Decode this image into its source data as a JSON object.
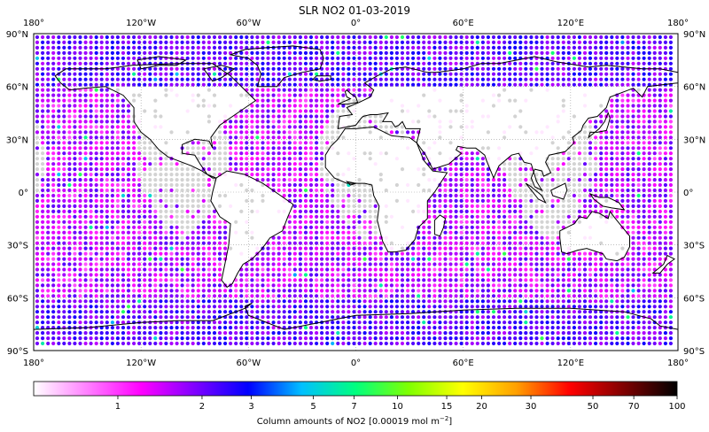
{
  "title": "SLR NO2 01-03-2019",
  "map": {
    "projection": "equirectangular",
    "lon_range": [
      -180,
      180
    ],
    "lat_range": [
      -90,
      90
    ],
    "gridlines": true,
    "coastlines": true,
    "lon_ticks": [
      {
        "value": -180,
        "label": "180°"
      },
      {
        "value": -120,
        "label": "120°W"
      },
      {
        "value": -60,
        "label": "60°W"
      },
      {
        "value": 0,
        "label": "0°"
      },
      {
        "value": 60,
        "label": "60°E"
      },
      {
        "value": 120,
        "label": "120°E"
      },
      {
        "value": 180,
        "label": "180°"
      }
    ],
    "lat_ticks": [
      {
        "value": 90,
        "label": "90°N"
      },
      {
        "value": 60,
        "label": "60°N"
      },
      {
        "value": 30,
        "label": "30°N"
      },
      {
        "value": 0,
        "label": "0°"
      },
      {
        "value": -30,
        "label": "30°S"
      },
      {
        "value": -60,
        "label": "60°S"
      },
      {
        "value": -90,
        "label": "90°S"
      }
    ],
    "no_data_color": "#d3d3d3"
  },
  "colorbar": {
    "label": "Column amounts of NO2 [0.00019 mol m",
    "label_superscript": "−2",
    "label_suffix": "]",
    "scale": "log",
    "range": [
      0.5,
      100
    ],
    "ticks": [
      {
        "value": 1,
        "label": "1"
      },
      {
        "value": 2,
        "label": "2"
      },
      {
        "value": 3,
        "label": "3"
      },
      {
        "value": 5,
        "label": "5"
      },
      {
        "value": 7,
        "label": "7"
      },
      {
        "value": 10,
        "label": "10"
      },
      {
        "value": 15,
        "label": "15"
      },
      {
        "value": 20,
        "label": "20"
      },
      {
        "value": 30,
        "label": "30"
      },
      {
        "value": 50,
        "label": "50"
      },
      {
        "value": 70,
        "label": "70"
      },
      {
        "value": 100,
        "label": "100"
      }
    ],
    "colormap_stops": [
      "#ffffff",
      "#ff80ff",
      "#ff00ff",
      "#8000ff",
      "#0000ff",
      "#00c0ff",
      "#00ff80",
      "#80ff00",
      "#ffff00",
      "#ffa000",
      "#ff0000",
      "#800000",
      "#000000"
    ]
  }
}
